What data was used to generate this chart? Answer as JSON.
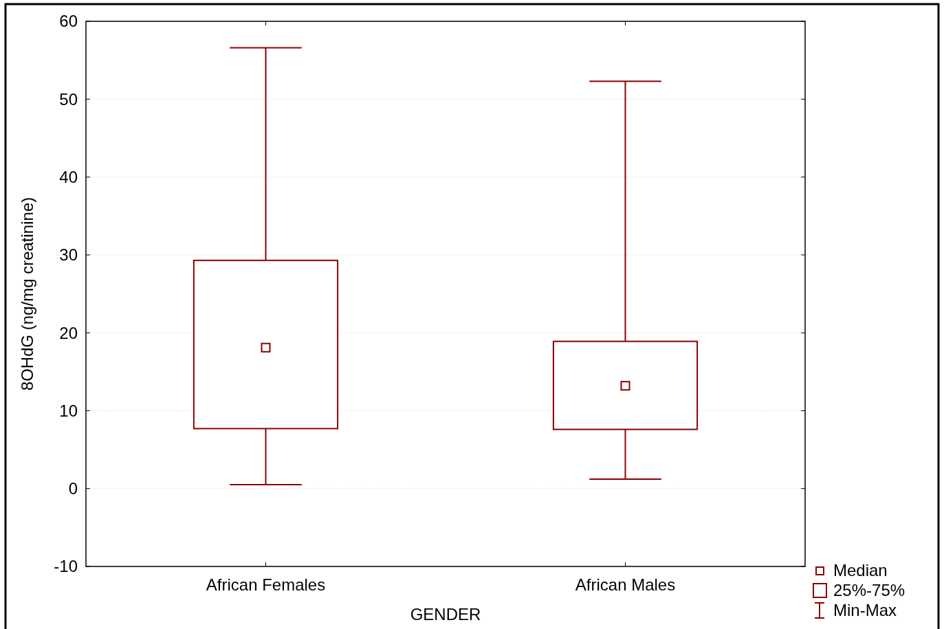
{
  "chart_data": {
    "type": "box",
    "categories": [
      "African Females",
      "African Males"
    ],
    "xlabel": "GENDER",
    "ylabel": "8OHdG (ng/mg creatinine)",
    "ylim": [
      -10,
      60
    ],
    "yticks": [
      -10,
      0,
      10,
      20,
      30,
      40,
      50,
      60
    ],
    "grid": "y",
    "annotations": [
      "Median",
      "25%-75%",
      "Min-Max"
    ],
    "series": [
      {
        "color": "#8b0000",
        "boxes": [
          {
            "low": 0.5,
            "q1": 7.7,
            "median": 18.1,
            "q3": 29.3,
            "high": 56.6
          },
          {
            "low": 1.2,
            "q1": 7.6,
            "median": 13.2,
            "q3": 18.9,
            "high": 52.3
          }
        ]
      }
    ]
  }
}
